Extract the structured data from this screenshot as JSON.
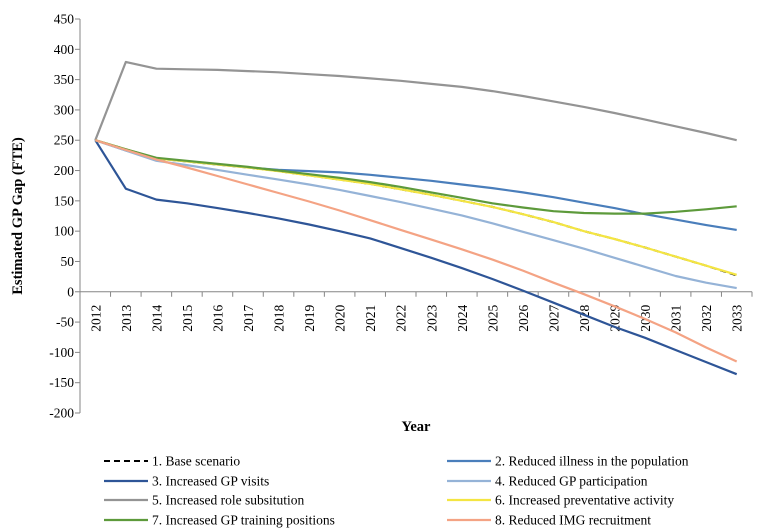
{
  "chart_data": {
    "type": "line",
    "title": "",
    "xlabel": "Year",
    "ylabel": "Estimated GP Gap (FTE)",
    "ylim": [
      -200,
      450
    ],
    "yticks": [
      450,
      400,
      350,
      300,
      250,
      200,
      150,
      100,
      50,
      0,
      -50,
      -100,
      -150,
      -200
    ],
    "ytick_labels": [
      "450",
      "400",
      "350",
      "300",
      "250",
      "200",
      "150",
      "100",
      "50",
      "0",
      "-50",
      "-100",
      "-150",
      "-200"
    ],
    "x": [
      "2012",
      "2013",
      "2014",
      "2015",
      "2016",
      "2017",
      "2018",
      "2019",
      "2020",
      "2021",
      "2022",
      "2023",
      "2024",
      "2025",
      "2026",
      "2027",
      "2028",
      "2029",
      "2030",
      "2031",
      "2032",
      "2033"
    ],
    "grid": false,
    "legend_position": "bottom",
    "series": [
      {
        "name": "1. Base scenario",
        "color": "#000000",
        "dashed": true,
        "values": [
          250,
          235,
          220,
          215,
          210,
          205,
          199,
          192,
          185,
          178,
          169,
          160,
          150,
          140,
          128,
          115,
          100,
          87,
          73,
          58,
          43,
          27
        ]
      },
      {
        "name": "2. Reduced illness in the population",
        "color": "#4a7ebb",
        "dashed": false,
        "values": [
          250,
          233,
          220,
          215,
          210,
          205,
          201,
          199,
          197,
          193,
          188,
          183,
          177,
          171,
          164,
          156,
          147,
          138,
          128,
          119,
          110,
          102
        ]
      },
      {
        "name": "3. Increased GP visits",
        "color": "#2e5597",
        "dashed": false,
        "values": [
          250,
          170,
          152,
          146,
          138,
          130,
          121,
          111,
          100,
          88,
          72,
          56,
          39,
          21,
          2,
          -18,
          -38,
          -58,
          -76,
          -96,
          -116,
          -136
        ]
      },
      {
        "name": "4. Reduced GP participation",
        "color": "#95b3d7",
        "dashed": false,
        "values": [
          250,
          233,
          216,
          209,
          201,
          193,
          185,
          177,
          168,
          158,
          148,
          137,
          126,
          113,
          99,
          85,
          71,
          56,
          41,
          26,
          15,
          6
        ]
      },
      {
        "name": "5. Increased role subsitution",
        "color": "#949494",
        "dashed": false,
        "values": [
          250,
          379,
          368,
          367,
          366,
          364,
          362,
          359,
          356,
          352,
          348,
          343,
          338,
          331,
          323,
          314,
          305,
          295,
          284,
          273,
          262,
          250
        ]
      },
      {
        "name": "6. Increased preventative activity",
        "color": "#f4e542",
        "dashed": false,
        "values": [
          250,
          235,
          220,
          215,
          210,
          205,
          199,
          192,
          185,
          178,
          169,
          160,
          150,
          140,
          128,
          115,
          100,
          87,
          73,
          58,
          43,
          28
        ]
      },
      {
        "name": "7. Increased GP training positions",
        "color": "#5d9a3b",
        "dashed": false,
        "values": [
          250,
          235,
          221,
          216,
          211,
          206,
          200,
          194,
          188,
          181,
          173,
          164,
          155,
          146,
          139,
          133,
          130,
          129,
          129,
          132,
          136,
          141
        ]
      },
      {
        "name": "8. Reduced IMG recruitment",
        "color": "#f4a384",
        "dashed": false,
        "values": [
          250,
          234,
          218,
          205,
          191,
          177,
          163,
          149,
          134,
          118,
          102,
          86,
          70,
          53,
          35,
          15,
          -4,
          -24,
          -45,
          -67,
          -92,
          -115
        ]
      }
    ]
  }
}
